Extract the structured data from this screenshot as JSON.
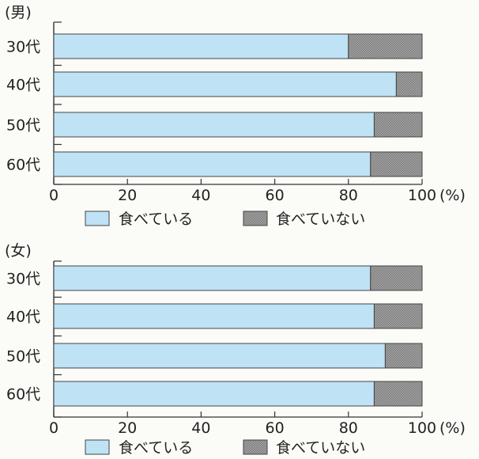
{
  "chart_data": [
    {
      "type": "bar",
      "orientation": "horizontal",
      "stacked": true,
      "title": "(男)",
      "categories": [
        "30代",
        "40代",
        "50代",
        "60代"
      ],
      "series": [
        {
          "name": "食べている",
          "values": [
            80,
            93,
            87,
            86
          ]
        },
        {
          "name": "食べていない",
          "values": [
            20,
            7,
            13,
            14
          ]
        }
      ],
      "xlim": [
        0,
        100
      ],
      "xticks": [
        "0",
        "20",
        "40",
        "60",
        "80",
        "100"
      ],
      "xunit": "(%)",
      "grid": false,
      "legend": "bottom"
    },
    {
      "type": "bar",
      "orientation": "horizontal",
      "stacked": true,
      "title": "(女)",
      "categories": [
        "30代",
        "40代",
        "50代",
        "60代"
      ],
      "series": [
        {
          "name": "食べている",
          "values": [
            86,
            87,
            90,
            87
          ]
        },
        {
          "name": "食べていない",
          "values": [
            14,
            13,
            10,
            13
          ]
        }
      ],
      "xlim": [
        0,
        100
      ],
      "xticks": [
        "0",
        "20",
        "40",
        "60",
        "80",
        "100"
      ],
      "xunit": "(%)",
      "grid": false,
      "legend": "bottom"
    }
  ],
  "colors": {
    "eating": "#bfe2f5",
    "not_eating": "#9a9a9a",
    "border": "#444444"
  }
}
